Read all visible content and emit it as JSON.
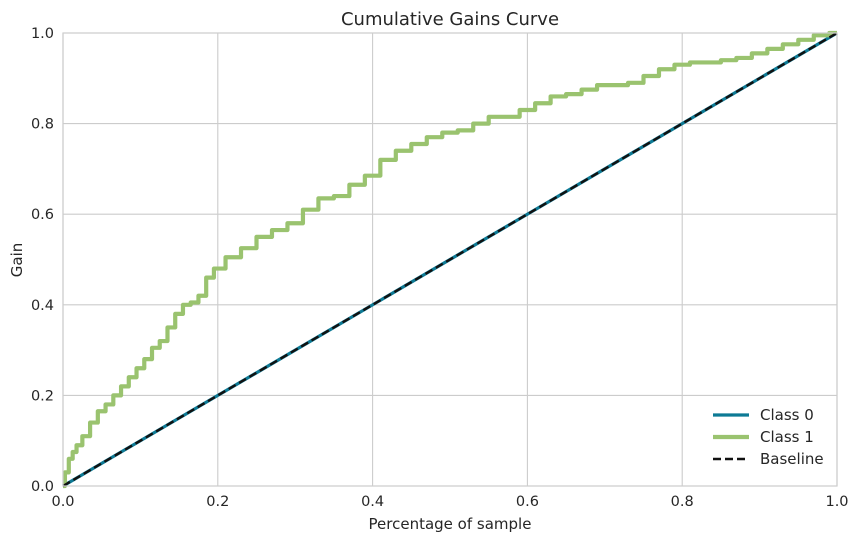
{
  "chart_data": {
    "type": "line",
    "title": "Cumulative Gains Curve",
    "xlabel": "Percentage of sample",
    "ylabel": "Gain",
    "xlim": [
      0.0,
      1.0
    ],
    "ylim": [
      0.0,
      1.0
    ],
    "xticks": [
      "0.0",
      "0.2",
      "0.4",
      "0.6",
      "0.8",
      "1.0"
    ],
    "yticks": [
      "0.0",
      "0.2",
      "0.4",
      "0.6",
      "0.8",
      "1.0"
    ],
    "grid": true,
    "legend_position": "bottom-right",
    "series": [
      {
        "name": "Class 0",
        "color": "#0d7a95",
        "style": "solid",
        "x": [
          0.0,
          1.0
        ],
        "y": [
          0.0,
          1.0
        ]
      },
      {
        "name": "Class 1",
        "color": "#9ac36f",
        "style": "solid",
        "x": [
          0.0,
          0.005,
          0.01,
          0.015,
          0.02,
          0.03,
          0.04,
          0.05,
          0.06,
          0.07,
          0.08,
          0.09,
          0.1,
          0.11,
          0.12,
          0.13,
          0.14,
          0.15,
          0.16,
          0.17,
          0.18,
          0.19,
          0.2,
          0.22,
          0.24,
          0.26,
          0.28,
          0.3,
          0.32,
          0.34,
          0.36,
          0.38,
          0.4,
          0.42,
          0.44,
          0.46,
          0.48,
          0.5,
          0.52,
          0.54,
          0.56,
          0.58,
          0.6,
          0.62,
          0.64,
          0.66,
          0.68,
          0.7,
          0.72,
          0.74,
          0.76,
          0.78,
          0.8,
          0.82,
          0.84,
          0.86,
          0.88,
          0.9,
          0.92,
          0.94,
          0.96,
          0.98,
          1.0
        ],
        "y": [
          0.0,
          0.03,
          0.06,
          0.075,
          0.09,
          0.11,
          0.14,
          0.165,
          0.18,
          0.2,
          0.22,
          0.24,
          0.26,
          0.28,
          0.305,
          0.32,
          0.35,
          0.38,
          0.4,
          0.405,
          0.42,
          0.46,
          0.48,
          0.505,
          0.525,
          0.55,
          0.565,
          0.58,
          0.61,
          0.635,
          0.64,
          0.665,
          0.685,
          0.72,
          0.74,
          0.755,
          0.77,
          0.78,
          0.785,
          0.8,
          0.815,
          0.815,
          0.83,
          0.845,
          0.86,
          0.865,
          0.875,
          0.885,
          0.885,
          0.89,
          0.905,
          0.92,
          0.93,
          0.935,
          0.935,
          0.94,
          0.945,
          0.955,
          0.965,
          0.975,
          0.985,
          0.995,
          1.0
        ]
      },
      {
        "name": "Baseline",
        "color": "#111111",
        "style": "dashed",
        "x": [
          0.0,
          1.0
        ],
        "y": [
          0.0,
          1.0
        ]
      }
    ]
  }
}
